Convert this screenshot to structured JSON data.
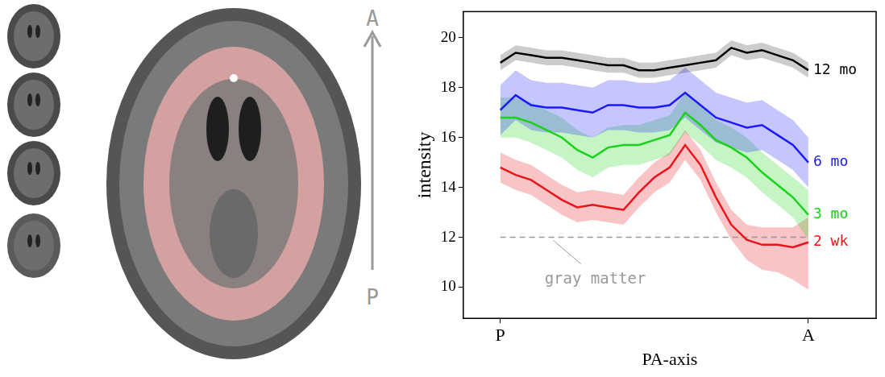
{
  "chart_data": {
    "type": "line",
    "x_label": "PA-axis",
    "y_label": "intensity",
    "x": [
      0,
      0.05,
      0.1,
      0.15,
      0.2,
      0.25,
      0.3,
      0.35,
      0.4,
      0.45,
      0.5,
      0.55,
      0.6,
      0.65,
      0.7,
      0.75,
      0.8,
      0.85,
      0.9,
      0.95,
      1
    ],
    "series": [
      {
        "name": "12 mo",
        "color": "#000000",
        "values": [
          19.0,
          19.4,
          19.3,
          19.2,
          19.2,
          19.1,
          19.0,
          18.9,
          18.9,
          18.7,
          18.7,
          18.8,
          18.9,
          19.0,
          19.1,
          19.6,
          19.4,
          19.5,
          19.3,
          19.1,
          18.7
        ],
        "upper": [
          19.3,
          19.7,
          19.6,
          19.5,
          19.5,
          19.4,
          19.3,
          19.2,
          19.2,
          19.0,
          19.0,
          19.1,
          19.2,
          19.3,
          19.4,
          19.9,
          19.7,
          19.8,
          19.6,
          19.4,
          19.0
        ],
        "lower": [
          18.7,
          19.1,
          19.0,
          18.9,
          18.9,
          18.8,
          18.7,
          18.6,
          18.6,
          18.4,
          18.4,
          18.5,
          18.6,
          18.7,
          18.8,
          19.3,
          19.1,
          19.2,
          19.0,
          18.8,
          18.4
        ]
      },
      {
        "name": "6 mo",
        "color": "#1a1aff",
        "values": [
          17.1,
          17.7,
          17.3,
          17.2,
          17.2,
          17.1,
          17.0,
          17.3,
          17.3,
          17.2,
          17.2,
          17.3,
          17.8,
          17.3,
          16.8,
          16.6,
          16.4,
          16.5,
          16.1,
          15.7,
          15.0
        ],
        "upper": [
          18.1,
          18.7,
          18.3,
          18.2,
          18.2,
          18.1,
          18.0,
          18.3,
          18.3,
          18.2,
          18.2,
          18.3,
          18.8,
          18.3,
          17.8,
          17.6,
          17.4,
          17.5,
          17.1,
          16.7,
          16.0
        ],
        "lower": [
          16.1,
          16.7,
          16.3,
          16.2,
          16.2,
          16.1,
          16.0,
          16.3,
          16.3,
          16.2,
          16.2,
          16.3,
          16.8,
          16.3,
          15.8,
          15.6,
          15.4,
          15.5,
          15.1,
          14.7,
          14.0
        ]
      },
      {
        "name": "3 mo",
        "color": "#19d219",
        "values": [
          16.8,
          16.8,
          16.6,
          16.3,
          16.0,
          15.5,
          15.2,
          15.6,
          15.7,
          15.7,
          15.9,
          16.1,
          17.0,
          16.5,
          15.9,
          15.6,
          15.2,
          14.6,
          14.1,
          13.6,
          12.9
        ],
        "upper": [
          17.6,
          17.6,
          17.4,
          17.1,
          16.8,
          16.3,
          16.0,
          16.4,
          16.5,
          16.5,
          16.7,
          16.9,
          17.8,
          17.3,
          16.7,
          16.4,
          16.0,
          15.4,
          14.9,
          14.4,
          13.9
        ],
        "lower": [
          16.0,
          16.0,
          15.8,
          15.5,
          15.2,
          14.7,
          14.4,
          14.8,
          14.9,
          14.9,
          15.1,
          15.3,
          16.2,
          15.7,
          15.1,
          14.8,
          14.4,
          13.8,
          13.3,
          12.8,
          11.9
        ]
      },
      {
        "name": "2 wk",
        "color": "#e8141a",
        "values": [
          14.8,
          14.5,
          14.3,
          13.9,
          13.5,
          13.2,
          13.3,
          13.2,
          13.1,
          13.8,
          14.4,
          14.8,
          15.7,
          14.9,
          13.6,
          12.5,
          11.9,
          11.7,
          11.7,
          11.6,
          11.8
        ],
        "upper": [
          15.4,
          15.1,
          14.9,
          14.5,
          14.1,
          13.8,
          13.9,
          13.8,
          13.7,
          14.4,
          15.0,
          15.4,
          16.3,
          15.5,
          14.2,
          13.1,
          12.5,
          12.4,
          12.4,
          12.4,
          12.8
        ],
        "lower": [
          14.2,
          13.9,
          13.7,
          13.3,
          12.9,
          12.6,
          12.7,
          12.6,
          12.5,
          13.2,
          13.8,
          14.2,
          15.1,
          14.3,
          13.0,
          11.9,
          11.1,
          10.7,
          10.6,
          10.3,
          9.9
        ]
      }
    ],
    "reference_lines": [
      {
        "y": 12,
        "x": [
          0,
          1
        ],
        "label": "gray matter",
        "line_style": "dashed",
        "color": "#999999"
      }
    ],
    "xlim": [
      -0.12,
      1.22
    ],
    "xticks": [
      {
        "value": 0,
        "label": "P"
      },
      {
        "value": 1,
        "label": "A"
      }
    ],
    "ylim": [
      8.75,
      21.05
    ],
    "yticks": [
      10,
      12,
      14,
      16,
      18,
      20
    ],
    "grid": false,
    "legend": false
  },
  "image_panel": {
    "arrow_top": "A",
    "arrow_bottom": "P"
  }
}
